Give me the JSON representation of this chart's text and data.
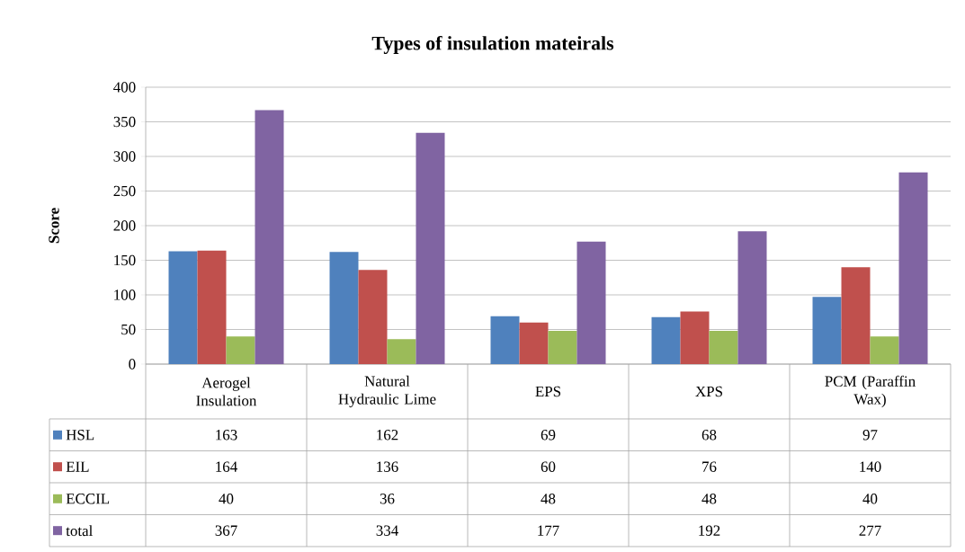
{
  "chart_data": {
    "type": "bar",
    "title": "Types of insulation mateirals",
    "ylabel": "Score",
    "categories": [
      "Aerogel Insulation",
      "Natural Hydraulic Lime",
      "EPS",
      "XPS",
      "PCM (Paraffin Wax)"
    ],
    "series": [
      {
        "name": "HSL",
        "color": "#4f81bd",
        "values": [
          163,
          162,
          69,
          68,
          97
        ]
      },
      {
        "name": "EIL",
        "color": "#c0504d",
        "values": [
          164,
          136,
          60,
          76,
          140
        ]
      },
      {
        "name": "ECCIL",
        "color": "#9bbb59",
        "values": [
          40,
          36,
          48,
          48,
          40
        ]
      },
      {
        "name": "total",
        "color": "#8064a2",
        "values": [
          367,
          334,
          177,
          192,
          277
        ]
      }
    ],
    "ylim": [
      0,
      400
    ],
    "yticks": [
      0,
      50,
      100,
      150,
      200,
      250,
      300,
      350,
      400
    ],
    "grid": "y",
    "legend": "bottom",
    "data_labels": true
  }
}
